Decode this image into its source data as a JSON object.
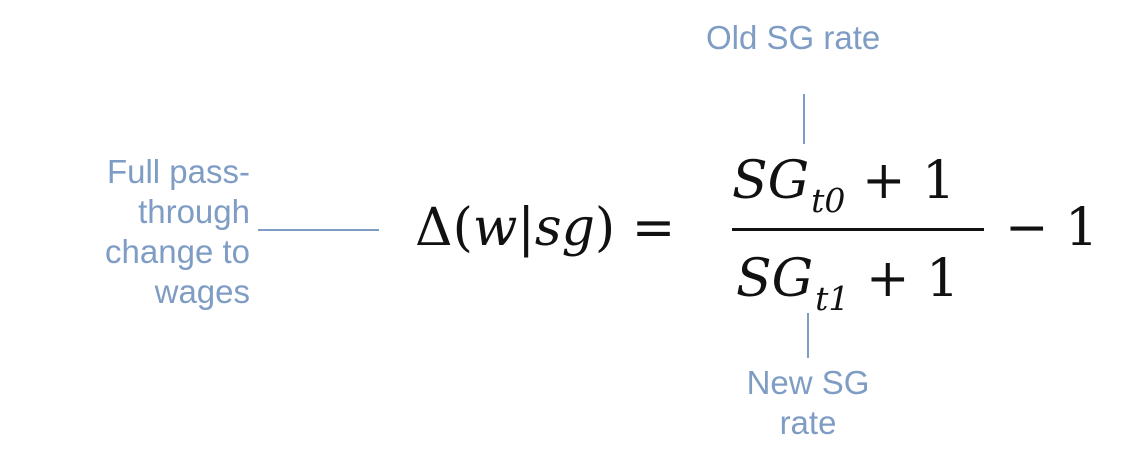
{
  "annotations": {
    "old_rate": "Old SG rate",
    "full_pass_through": [
      "Full pass-",
      "through",
      "change to",
      "wages"
    ],
    "new_rate": [
      "New SG",
      "rate"
    ]
  },
  "equation": {
    "delta": "Δ",
    "lhs_open": "(",
    "lhs_w": "w",
    "lhs_bar": "|",
    "lhs_sg": "sg",
    "lhs_close": ")",
    "equals": " = ",
    "num_base": "SG",
    "num_sub": "t0",
    "num_tail": " + 1",
    "den_base": "SG",
    "den_sub": "t1",
    "den_tail": " + 1",
    "minus_one": "− 1"
  },
  "colors": {
    "annotation": "#7f9dc4",
    "math": "#111111"
  }
}
